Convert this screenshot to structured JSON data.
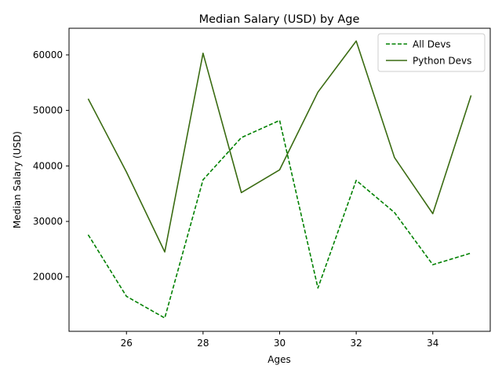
{
  "chart_data": {
    "type": "line",
    "title": "Median Salary (USD) by Age",
    "xlabel": "Ages",
    "ylabel": "Median Salary (USD)",
    "x": [
      25,
      26,
      27,
      28,
      29,
      30,
      31,
      32,
      33,
      34,
      35
    ],
    "xlim": [
      24.5,
      35.5
    ],
    "ylim": [
      10200,
      64800
    ],
    "x_ticks": [
      26,
      28,
      30,
      32,
      34
    ],
    "y_ticks": [
      20000,
      30000,
      40000,
      50000,
      60000
    ],
    "grid": false,
    "legend_position": "top-right",
    "series": [
      {
        "name": "All Devs",
        "color": "#008000",
        "linestyle": "dashed",
        "values": [
          27600,
          16500,
          12600,
          37500,
          45100,
          48200,
          18000,
          37400,
          31600,
          22200,
          24300
        ]
      },
      {
        "name": "Python Devs",
        "color": "#3a6b12",
        "linestyle": "solid",
        "values": [
          52100,
          38900,
          24500,
          60300,
          35200,
          39300,
          53300,
          62500,
          41500,
          31400,
          52700
        ]
      }
    ]
  }
}
